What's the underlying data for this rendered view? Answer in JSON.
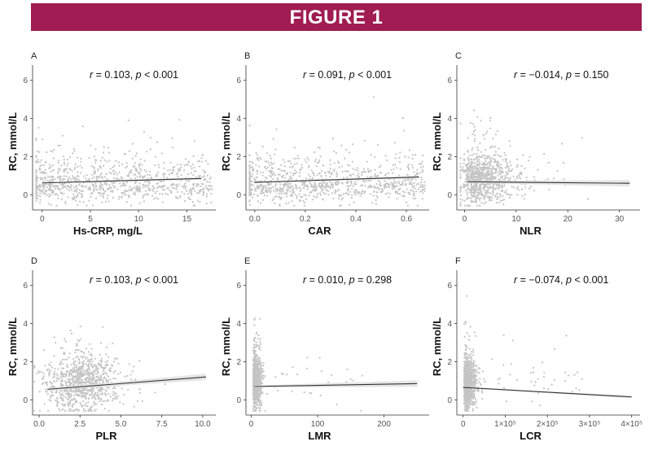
{
  "figure_title": "FIGURE 1",
  "colors": {
    "banner": "#a01c52",
    "points": "#c4c4c4",
    "fit_line": "#333333",
    "ci_band": "#e6e6e6"
  },
  "chart_data": [
    {
      "panel": "A",
      "type": "scatter",
      "xlabel": "Hs-CRP, mg/L",
      "ylabel": "RC, mmol/L",
      "xlim": [
        -1,
        18
      ],
      "ylim": [
        -0.8,
        6.8
      ],
      "xticks": [
        0,
        5,
        10,
        15
      ],
      "xtick_labels": [
        "0",
        "5",
        "10",
        "15"
      ],
      "yticks": [
        0,
        2,
        4,
        6
      ],
      "ytick_labels": [
        "0",
        "2",
        "4",
        "6"
      ],
      "r_label": "r",
      "r_text": " = 0.103, ",
      "p_label": "p",
      "p_text": " < 0.001",
      "fit": {
        "x0": 0,
        "y0": 0.62,
        "x1": 16.5,
        "y1": 0.85
      }
    },
    {
      "panel": "B",
      "type": "scatter",
      "xlabel": "CAR",
      "ylabel": "RC, mmol/L",
      "xlim": [
        -0.035,
        0.69
      ],
      "ylim": [
        -0.8,
        6.8
      ],
      "xticks": [
        0.0,
        0.2,
        0.4,
        0.6
      ],
      "xtick_labels": [
        "0.0",
        "0.2",
        "0.4",
        "0.6"
      ],
      "yticks": [
        0,
        2,
        4,
        6
      ],
      "ytick_labels": [
        "0",
        "2",
        "4",
        "6"
      ],
      "r_label": "r",
      "r_text": " = 0.091, ",
      "p_label": "p",
      "p_text": " < 0.001",
      "fit": {
        "x0": 0,
        "y0": 0.65,
        "x1": 0.65,
        "y1": 0.93
      }
    },
    {
      "panel": "C",
      "type": "scatter",
      "xlabel": "NLR",
      "ylabel": "RC, mmol/L",
      "xlim": [
        -1.5,
        34
      ],
      "ylim": [
        -0.8,
        6.8
      ],
      "xticks": [
        0,
        10,
        20,
        30
      ],
      "xtick_labels": [
        "0",
        "10",
        "20",
        "30"
      ],
      "yticks": [
        0,
        2,
        4,
        6
      ],
      "ytick_labels": [
        "0",
        "2",
        "4",
        "6"
      ],
      "r_label": "r",
      "r_text": " = −0.014, ",
      "p_label": "p",
      "p_text": " = 0.150",
      "fit": {
        "x0": 0.5,
        "y0": 0.68,
        "x1": 32,
        "y1": 0.6
      }
    },
    {
      "panel": "D",
      "type": "scatter",
      "xlabel": "PLR",
      "ylabel": "RC, mmol/L",
      "xlim": [
        -0.4,
        10.8
      ],
      "ylim": [
        -0.8,
        6.8
      ],
      "xticks": [
        0.0,
        2.5,
        5.0,
        7.5,
        10.0
      ],
      "xtick_labels": [
        "0.0",
        "2.5",
        "5.0",
        "7.5",
        "10.0"
      ],
      "yticks": [
        0,
        2,
        4,
        6
      ],
      "ytick_labels": [
        "0",
        "2",
        "4",
        "6"
      ],
      "r_label": "r",
      "r_text": " = 0.103, ",
      "p_label": "p",
      "p_text": " < 0.001",
      "fit": {
        "x0": 0.5,
        "y0": 0.55,
        "x1": 10.2,
        "y1": 1.2
      }
    },
    {
      "panel": "E",
      "type": "scatter",
      "xlabel": "LMR",
      "ylabel": "RC, mmol/L",
      "xlim": [
        -8,
        268
      ],
      "ylim": [
        -0.8,
        6.8
      ],
      "xticks": [
        0,
        100,
        200
      ],
      "xtick_labels": [
        "0",
        "100",
        "200"
      ],
      "yticks": [
        0,
        2,
        4,
        6
      ],
      "ytick_labels": [
        "0",
        "2",
        "4",
        "6"
      ],
      "r_label": "r",
      "r_text": " = 0.010, ",
      "p_label": "p",
      "p_text": " = 0.298",
      "fit": {
        "x0": 5,
        "y0": 0.7,
        "x1": 250,
        "y1": 0.85
      }
    },
    {
      "panel": "F",
      "type": "scatter",
      "xlabel": "LCR",
      "ylabel": "RC, mmol/L",
      "xlim": [
        -15000,
        420000
      ],
      "ylim": [
        -0.8,
        6.8
      ],
      "xticks": [
        0,
        100000,
        200000,
        300000,
        400000
      ],
      "xtick_labels": [
        "0",
        "1×10⁵",
        "2×10⁵",
        "3×10⁵",
        "4×10⁵"
      ],
      "yticks": [
        0,
        2,
        4,
        6
      ],
      "ytick_labels": [
        "0",
        "2",
        "4",
        "6"
      ],
      "r_label": "r",
      "r_text": " = −0.074, ",
      "p_label": "p",
      "p_text": " < 0.001",
      "fit": {
        "x0": 0,
        "y0": 0.65,
        "x1": 400000,
        "y1": 0.15
      }
    }
  ]
}
